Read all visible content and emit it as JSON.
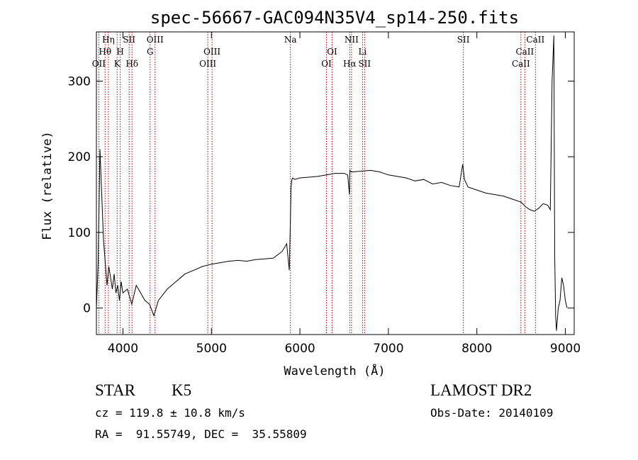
{
  "chart_data": {
    "type": "line",
    "title": "spec-56667-GAC094N35V4_sp14-250.fits",
    "xlabel": "Wavelength (Å)",
    "ylabel": "Flux (relative)",
    "xlim": [
      3700,
      9100
    ],
    "ylim": [
      -35,
      365
    ],
    "xticks": [
      4000,
      5000,
      6000,
      7000,
      8000,
      9000
    ],
    "yticks": [
      0,
      100,
      200,
      300
    ],
    "grid": false,
    "line_color": "#000000",
    "marker_color": "#aa0000",
    "lines": [
      {
        "label": "Hη",
        "x": 3835,
        "row": 1
      },
      {
        "label": "Hθ",
        "x": 3798,
        "row": 2
      },
      {
        "label": "OII",
        "x": 3727,
        "row": 3
      },
      {
        "label": "SII",
        "x": 4070,
        "row": 1
      },
      {
        "label": "H",
        "x": 3969,
        "row": 2
      },
      {
        "label": "K",
        "x": 3934,
        "row": 3
      },
      {
        "label": "Hδ",
        "x": 4102,
        "row": 3
      },
      {
        "label": "OIII",
        "x": 4363,
        "row": 1
      },
      {
        "label": "G",
        "x": 4307,
        "row": 2
      },
      {
        "label": "OIII",
        "x": 5007,
        "row": 2
      },
      {
        "label": "OIII",
        "x": 4959,
        "row": 3
      },
      {
        "label": "Na",
        "x": 5893,
        "row": 1
      },
      {
        "label": "OI",
        "x": 6364,
        "row": 2
      },
      {
        "label": "OI",
        "x": 6300,
        "row": 3
      },
      {
        "label": "NII",
        "x": 6583,
        "row": 1
      },
      {
        "label": "Hα",
        "x": 6563,
        "row": 3
      },
      {
        "label": "Li",
        "x": 6708,
        "row": 2
      },
      {
        "label": "SII",
        "x": 6731,
        "row": 3
      },
      {
        "label": "SII",
        "x": 7847,
        "row": 1
      },
      {
        "label": "CaII",
        "x": 8662,
        "row": 1
      },
      {
        "label": "CaII",
        "x": 8542,
        "row": 2
      },
      {
        "label": "CaII",
        "x": 8498,
        "row": 3
      }
    ],
    "series": [
      {
        "x": [
          3700,
          3720,
          3740,
          3760,
          3780,
          3800,
          3820,
          3840,
          3860,
          3880,
          3900,
          3920,
          3940,
          3960,
          3980,
          4000,
          4050,
          4100,
          4150,
          4200,
          4250,
          4300,
          4350,
          4400,
          4500,
          4600,
          4700,
          4800,
          4900,
          5000,
          5100,
          5200,
          5300,
          5400,
          5500,
          5600,
          5700,
          5800,
          5850,
          5880,
          5890,
          5900,
          5910,
          5920,
          5940,
          6000,
          6100,
          6200,
          6300,
          6400,
          6500,
          6540,
          6560,
          6565,
          6580,
          6600,
          6700,
          6800,
          6900,
          7000,
          7100,
          7200,
          7300,
          7400,
          7500,
          7600,
          7700,
          7800,
          7840,
          7860,
          7900,
          8000,
          8100,
          8200,
          8300,
          8400,
          8500,
          8550,
          8600,
          8650,
          8700,
          8750,
          8800,
          8830,
          8850,
          8870,
          8880,
          8890,
          8900,
          8920,
          8940,
          8960,
          8980,
          9000,
          9020
        ],
        "y": [
          0,
          60,
          210,
          150,
          90,
          60,
          30,
          55,
          40,
          25,
          45,
          20,
          30,
          10,
          35,
          20,
          25,
          5,
          30,
          20,
          10,
          5,
          -10,
          10,
          25,
          35,
          45,
          50,
          55,
          58,
          60,
          62,
          63,
          62,
          64,
          65,
          66,
          75,
          85,
          50,
          100,
          160,
          170,
          172,
          170,
          172,
          173,
          174,
          176,
          178,
          178,
          176,
          150,
          182,
          180,
          180,
          181,
          182,
          180,
          176,
          174,
          172,
          168,
          170,
          164,
          166,
          162,
          160,
          190,
          170,
          160,
          156,
          152,
          150,
          148,
          144,
          140,
          134,
          130,
          128,
          132,
          138,
          136,
          130,
          300,
          360,
          70,
          -10,
          -30,
          0,
          10,
          40,
          30,
          10,
          0
        ]
      }
    ]
  },
  "info": {
    "class": "STAR",
    "subclass": "K5",
    "survey": "LAMOST DR2",
    "cz": "cz = 119.8 ± 10.8 km/s",
    "obs_date": "Obs-Date: 20140109",
    "position": "RA =  91.55749, DEC =  35.55809"
  }
}
